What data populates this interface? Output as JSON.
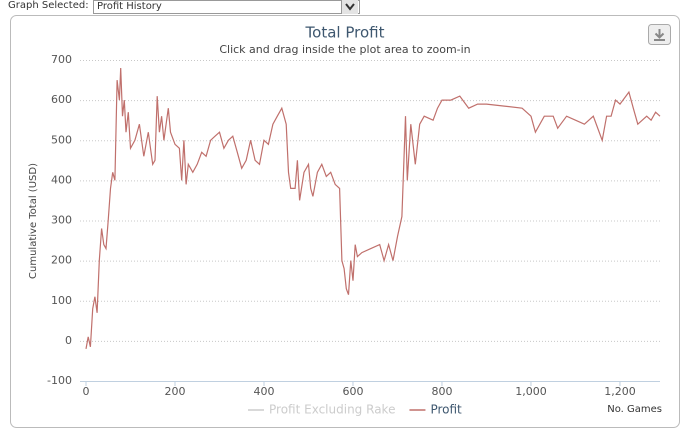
{
  "toolbar": {
    "label": "Graph Selected:",
    "selected": "Profit History"
  },
  "chart_data": {
    "type": "line",
    "title": "Total Profit",
    "subtitle": "Click and drag inside the plot area to zoom-in",
    "y_label": "Cumulative Total (USD)",
    "x_label": "No. Games",
    "x": [
      0,
      5,
      10,
      15,
      20,
      25,
      30,
      35,
      40,
      45,
      50,
      55,
      60,
      65,
      70,
      75,
      78,
      82,
      86,
      90,
      95,
      100,
      110,
      120,
      130,
      140,
      145,
      150,
      155,
      160,
      165,
      170,
      175,
      180,
      185,
      190,
      200,
      210,
      215,
      220,
      225,
      230,
      240,
      250,
      260,
      270,
      280,
      290,
      300,
      310,
      320,
      330,
      340,
      350,
      360,
      370,
      380,
      390,
      400,
      410,
      420,
      430,
      440,
      450,
      455,
      460,
      470,
      475,
      480,
      490,
      500,
      505,
      510,
      520,
      530,
      540,
      550,
      560,
      570,
      575,
      580,
      585,
      590,
      595,
      600,
      605,
      610,
      620,
      640,
      660,
      670,
      680,
      690,
      700,
      710,
      718,
      722,
      730,
      740,
      750,
      760,
      780,
      790,
      800,
      820,
      840,
      860,
      880,
      900,
      940,
      980,
      1000,
      1010,
      1030,
      1050,
      1060,
      1080,
      1100,
      1120,
      1140,
      1160,
      1170,
      1180,
      1190,
      1200,
      1220,
      1230,
      1240,
      1260,
      1270,
      1280,
      1290
    ],
    "series": [
      {
        "name": "Profit Excluding Rake",
        "color": "#cccccc",
        "visible": false
      },
      {
        "name": "Profit",
        "color": "#c0706c",
        "visible": true,
        "values": [
          -20,
          10,
          -15,
          80,
          110,
          70,
          200,
          280,
          240,
          230,
          300,
          380,
          420,
          400,
          650,
          600,
          680,
          560,
          600,
          520,
          570,
          480,
          500,
          540,
          460,
          520,
          480,
          440,
          450,
          610,
          520,
          560,
          500,
          540,
          580,
          520,
          490,
          480,
          400,
          500,
          390,
          440,
          420,
          440,
          470,
          460,
          500,
          510,
          520,
          480,
          500,
          510,
          470,
          430,
          450,
          500,
          450,
          440,
          500,
          490,
          540,
          560,
          580,
          540,
          420,
          380,
          380,
          450,
          350,
          420,
          440,
          380,
          360,
          420,
          440,
          410,
          420,
          390,
          380,
          200,
          180,
          130,
          115,
          200,
          150,
          240,
          210,
          220,
          230,
          240,
          200,
          240,
          200,
          260,
          310,
          560,
          400,
          540,
          440,
          540,
          560,
          550,
          580,
          600,
          600,
          610,
          580,
          590,
          590,
          585,
          580,
          560,
          520,
          560,
          560,
          530,
          560,
          550,
          540,
          560,
          500,
          560,
          560,
          600,
          590,
          620,
          580,
          540,
          560,
          550,
          570,
          560
        ]
      }
    ],
    "xlim": [
      0,
      1290
    ],
    "ylim": [
      -100,
      700
    ],
    "xticks": [
      0,
      200,
      400,
      600,
      800,
      {
        "value": 1000,
        "label": "1,000"
      },
      {
        "value": 1200,
        "label": "1,200"
      }
    ],
    "yticks": [
      -100,
      0,
      100,
      200,
      300,
      400,
      500,
      600,
      700
    ],
    "grid": true,
    "legend": "bottom"
  }
}
